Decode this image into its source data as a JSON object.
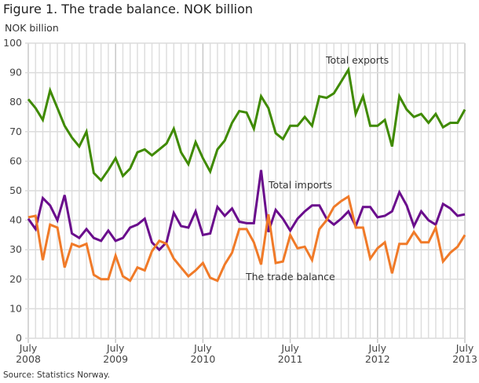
{
  "title": "Figure 1. The trade balance. NOK billion",
  "source": "Source: Statistics Norway.",
  "chart_data": {
    "type": "line",
    "title": "Figure 1. The trade balance. NOK billion",
    "ylabel": "NOK billion",
    "xlabel": "",
    "ylim": [
      0,
      100
    ],
    "yticks": [
      0,
      10,
      20,
      30,
      40,
      50,
      60,
      70,
      80,
      90,
      100
    ],
    "grid": true,
    "x_start": "2008-07",
    "x_end": "2013-07",
    "frequency": "monthly",
    "xtick_labels": [
      {
        "month": "July",
        "year": "2008"
      },
      {
        "month": "July",
        "year": "2009"
      },
      {
        "month": "July",
        "year": "2010"
      },
      {
        "month": "July",
        "year": "2011"
      },
      {
        "month": "July",
        "year": "2012"
      },
      {
        "month": "July",
        "year": "2013"
      }
    ],
    "series": [
      {
        "name": "Total exports",
        "color": "#3f8a00",
        "values": [
          81,
          78,
          74,
          84,
          78,
          72,
          68,
          65,
          70,
          56,
          53.5,
          57,
          61,
          55,
          57.5,
          63,
          64,
          62,
          64,
          66,
          71,
          63,
          59,
          66.5,
          61,
          56.5,
          64,
          67,
          73,
          77,
          76.5,
          71,
          82,
          78,
          69.5,
          67.5,
          72,
          72,
          75,
          72,
          82,
          81.5,
          83,
          87,
          91,
          76,
          82,
          72,
          72,
          74,
          65,
          82,
          77.5,
          75,
          76,
          73,
          76,
          71.5,
          73,
          73,
          77.5
        ]
      },
      {
        "name": "Total imports",
        "color": "#6a0d8c",
        "values": [
          40.5,
          37,
          47.5,
          45,
          40,
          48.5,
          35.5,
          34,
          37,
          34,
          33,
          36.5,
          33,
          34,
          37.5,
          38.5,
          40.5,
          32.5,
          30,
          32.5,
          42.5,
          38,
          37.5,
          43,
          35,
          35.5,
          44.5,
          41.5,
          44,
          39.5,
          39,
          39,
          57,
          36,
          43.5,
          40.5,
          36.5,
          40.5,
          43,
          45,
          45,
          40.5,
          38.5,
          40.5,
          43,
          38,
          44.5,
          44.5,
          41,
          41.5,
          43,
          49.5,
          45,
          38,
          43,
          40,
          38.5,
          45.5,
          44,
          41.5,
          42
        ]
      },
      {
        "name": "The trade balance",
        "color": "#f07a28",
        "values": [
          41,
          41.5,
          26.5,
          38.5,
          37.5,
          24,
          32,
          31,
          32,
          21.5,
          20,
          20,
          28,
          21,
          19.5,
          24,
          23,
          29.5,
          33,
          32,
          27,
          24,
          21,
          23,
          25.5,
          20.5,
          19.5,
          25,
          29,
          37,
          37,
          32.5,
          25,
          42,
          25.5,
          26,
          35,
          30.5,
          31,
          26.5,
          37,
          40,
          44.5,
          46.5,
          48,
          37.5,
          37.5,
          27,
          30.5,
          32.5,
          22,
          32,
          32,
          36,
          32.5,
          32.5,
          37.5,
          26,
          29,
          31,
          35
        ]
      }
    ]
  }
}
